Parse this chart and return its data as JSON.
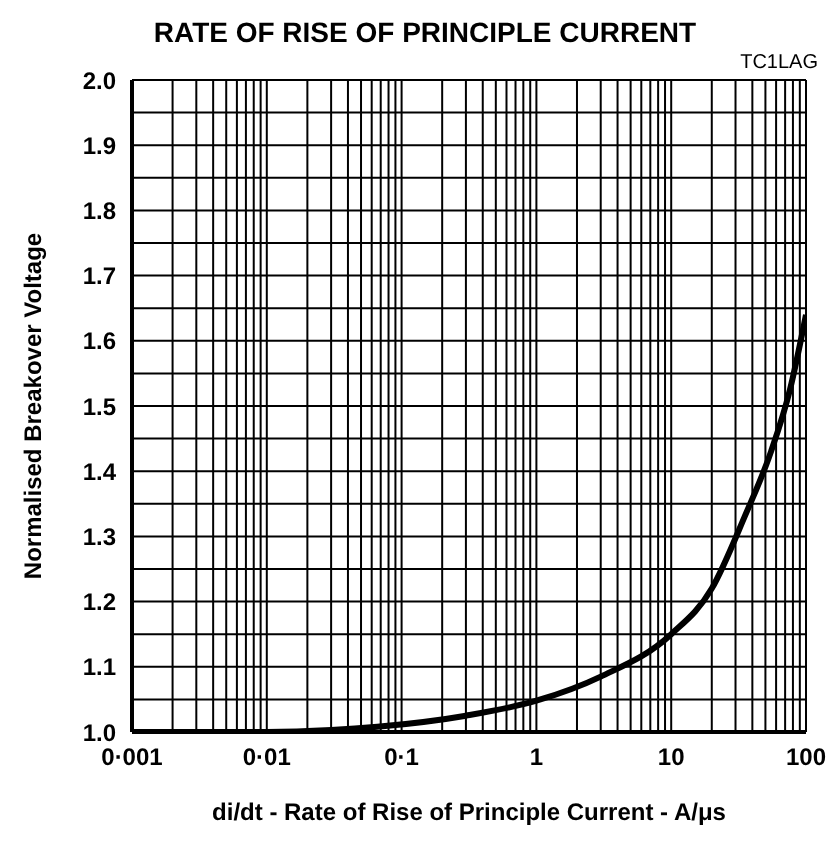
{
  "chart_data": {
    "type": "line",
    "title": "RATE OF RISE OF PRINCIPLE CURRENT",
    "xlabel": "di/dt - Rate of Rise of Principle Current - A/μs",
    "ylabel": "Normalised Breakover Voltage",
    "annotations": [
      "TC1LAG"
    ],
    "log": "x",
    "grid": true,
    "marker": "none",
    "line_style": "solid",
    "xlim": [
      0.001,
      100
    ],
    "ylim": [
      1.0,
      2.0
    ],
    "xticks": [
      {
        "value": 0.001,
        "label": "0·001"
      },
      {
        "value": 0.002,
        "label": null
      },
      {
        "value": 0.003,
        "label": null
      },
      {
        "value": 0.004,
        "label": null
      },
      {
        "value": 0.005,
        "label": null
      },
      {
        "value": 0.006,
        "label": null
      },
      {
        "value": 0.007,
        "label": null
      },
      {
        "value": 0.008,
        "label": null
      },
      {
        "value": 0.009,
        "label": null
      },
      {
        "value": 0.01,
        "label": "0·01"
      },
      {
        "value": 0.02,
        "label": null
      },
      {
        "value": 0.03,
        "label": null
      },
      {
        "value": 0.04,
        "label": null
      },
      {
        "value": 0.05,
        "label": null
      },
      {
        "value": 0.06,
        "label": null
      },
      {
        "value": 0.07,
        "label": null
      },
      {
        "value": 0.08,
        "label": null
      },
      {
        "value": 0.09,
        "label": null
      },
      {
        "value": 0.1,
        "label": "0·1"
      },
      {
        "value": 0.2,
        "label": null
      },
      {
        "value": 0.3,
        "label": null
      },
      {
        "value": 0.4,
        "label": null
      },
      {
        "value": 0.5,
        "label": null
      },
      {
        "value": 0.6,
        "label": null
      },
      {
        "value": 0.7,
        "label": null
      },
      {
        "value": 0.8,
        "label": null
      },
      {
        "value": 0.9,
        "label": null
      },
      1,
      {
        "value": 2,
        "label": null
      },
      {
        "value": 3,
        "label": null
      },
      {
        "value": 4,
        "label": null
      },
      {
        "value": 5,
        "label": null
      },
      {
        "value": 6,
        "label": null
      },
      {
        "value": 7,
        "label": null
      },
      {
        "value": 8,
        "label": null
      },
      {
        "value": 9,
        "label": null
      },
      10,
      {
        "value": 20,
        "label": null
      },
      {
        "value": 30,
        "label": null
      },
      {
        "value": 40,
        "label": null
      },
      {
        "value": 50,
        "label": null
      },
      {
        "value": 60,
        "label": null
      },
      {
        "value": 70,
        "label": null
      },
      {
        "value": 80,
        "label": null
      },
      {
        "value": 90,
        "label": null
      },
      100
    ],
    "yticks": [
      {
        "value": 1.0,
        "label": "1.0"
      },
      {
        "value": 1.05,
        "label": null
      },
      1.1,
      {
        "value": 1.15,
        "label": null
      },
      1.2,
      {
        "value": 1.25,
        "label": null
      },
      1.3,
      {
        "value": 1.35,
        "label": null
      },
      1.4,
      {
        "value": 1.45,
        "label": null
      },
      1.5,
      {
        "value": 1.55,
        "label": null
      },
      1.6,
      {
        "value": 1.65,
        "label": null
      },
      1.7,
      {
        "value": 1.75,
        "label": null
      },
      1.8,
      {
        "value": 1.85,
        "label": null
      },
      1.9,
      {
        "value": 1.95,
        "label": null
      },
      {
        "value": 2.0,
        "label": "2.0"
      }
    ],
    "x": [
      0.001,
      0.01,
      0.03,
      0.066,
      0.3,
      1,
      3,
      10,
      20,
      35,
      55,
      76,
      100
    ],
    "series": [
      {
        "color": "#000000",
        "values": [
          1.0,
          1.0,
          1.003,
          1.008,
          1.025,
          1.048,
          1.085,
          1.15,
          1.22,
          1.33,
          1.43,
          1.525,
          1.64
        ]
      }
    ]
  }
}
